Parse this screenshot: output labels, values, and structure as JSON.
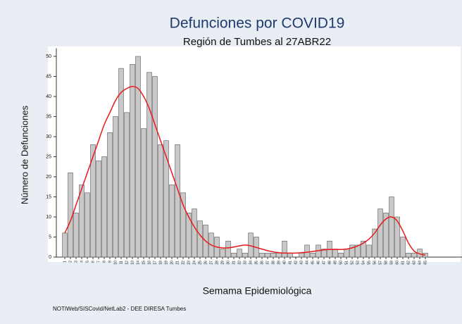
{
  "chart_data": {
    "type": "bar",
    "title": "Defunciones por COVID19",
    "subtitle": "Región de Tumbes al 27ABR22",
    "x_label": "Semama Epidemiológica",
    "y_label": "Número de Defunciones",
    "source": "NOTIWeb/SISCovid/NetLab2 - DEE DIRESA Tumbes",
    "categories": [
      "1",
      "2",
      "3",
      "4",
      "5",
      "6",
      "7",
      "8",
      "9",
      "10",
      "11",
      "12",
      "13",
      "14",
      "15",
      "16",
      "17",
      "18",
      "19",
      "20",
      "21",
      "22",
      "23",
      "24",
      "25",
      "26",
      "27",
      "28",
      "29",
      "30",
      "31",
      "32",
      "33",
      "34",
      "35",
      "36",
      "37",
      "38",
      "39",
      "40",
      "41",
      "42",
      "43",
      "44",
      "45",
      "46",
      "47",
      "48",
      "49",
      "50",
      "51",
      "52",
      "53",
      "54",
      "55",
      "56",
      "57",
      "58",
      "59",
      "60",
      "61",
      "62",
      "63",
      "64",
      "65"
    ],
    "values": [
      6,
      21,
      11,
      18,
      16,
      28,
      24,
      25,
      31,
      35,
      47,
      36,
      48,
      50,
      32,
      46,
      45,
      28,
      29,
      18,
      28,
      16,
      11,
      12,
      9,
      8,
      6,
      5,
      2,
      4,
      1,
      2,
      1,
      6,
      5,
      1,
      1,
      1,
      1,
      4,
      1,
      0,
      1,
      3,
      1,
      3,
      2,
      4,
      2,
      1,
      2,
      3,
      3,
      4,
      3,
      7,
      12,
      11,
      15,
      10,
      5,
      1,
      1,
      2,
      1
    ],
    "trend": [
      6,
      9,
      13,
      17,
      21,
      25,
      29,
      33,
      36,
      39,
      41,
      42,
      42.5,
      42,
      40,
      37,
      33,
      29,
      25,
      21,
      17,
      13,
      10,
      7.5,
      5.5,
      4,
      3,
      2.5,
      2.3,
      2.3,
      2.5,
      2.8,
      3,
      2.8,
      2.4,
      2,
      1.6,
      1.3,
      1.1,
      1,
      1,
      1,
      1.1,
      1.2,
      1.4,
      1.6,
      1.8,
      1.9,
      1.9,
      1.9,
      2,
      2.3,
      2.8,
      3.5,
      4.5,
      6,
      8,
      9.5,
      10,
      9,
      6.5,
      3.5,
      1.5,
      0.8,
      0.5
    ],
    "color": "#c8c8c8",
    "trend_color": "#e8191c",
    "ylim": [
      0,
      52
    ],
    "yticks": [
      0,
      5,
      10,
      15,
      20,
      25,
      30,
      35,
      40,
      45,
      50
    ],
    "grid": false
  }
}
